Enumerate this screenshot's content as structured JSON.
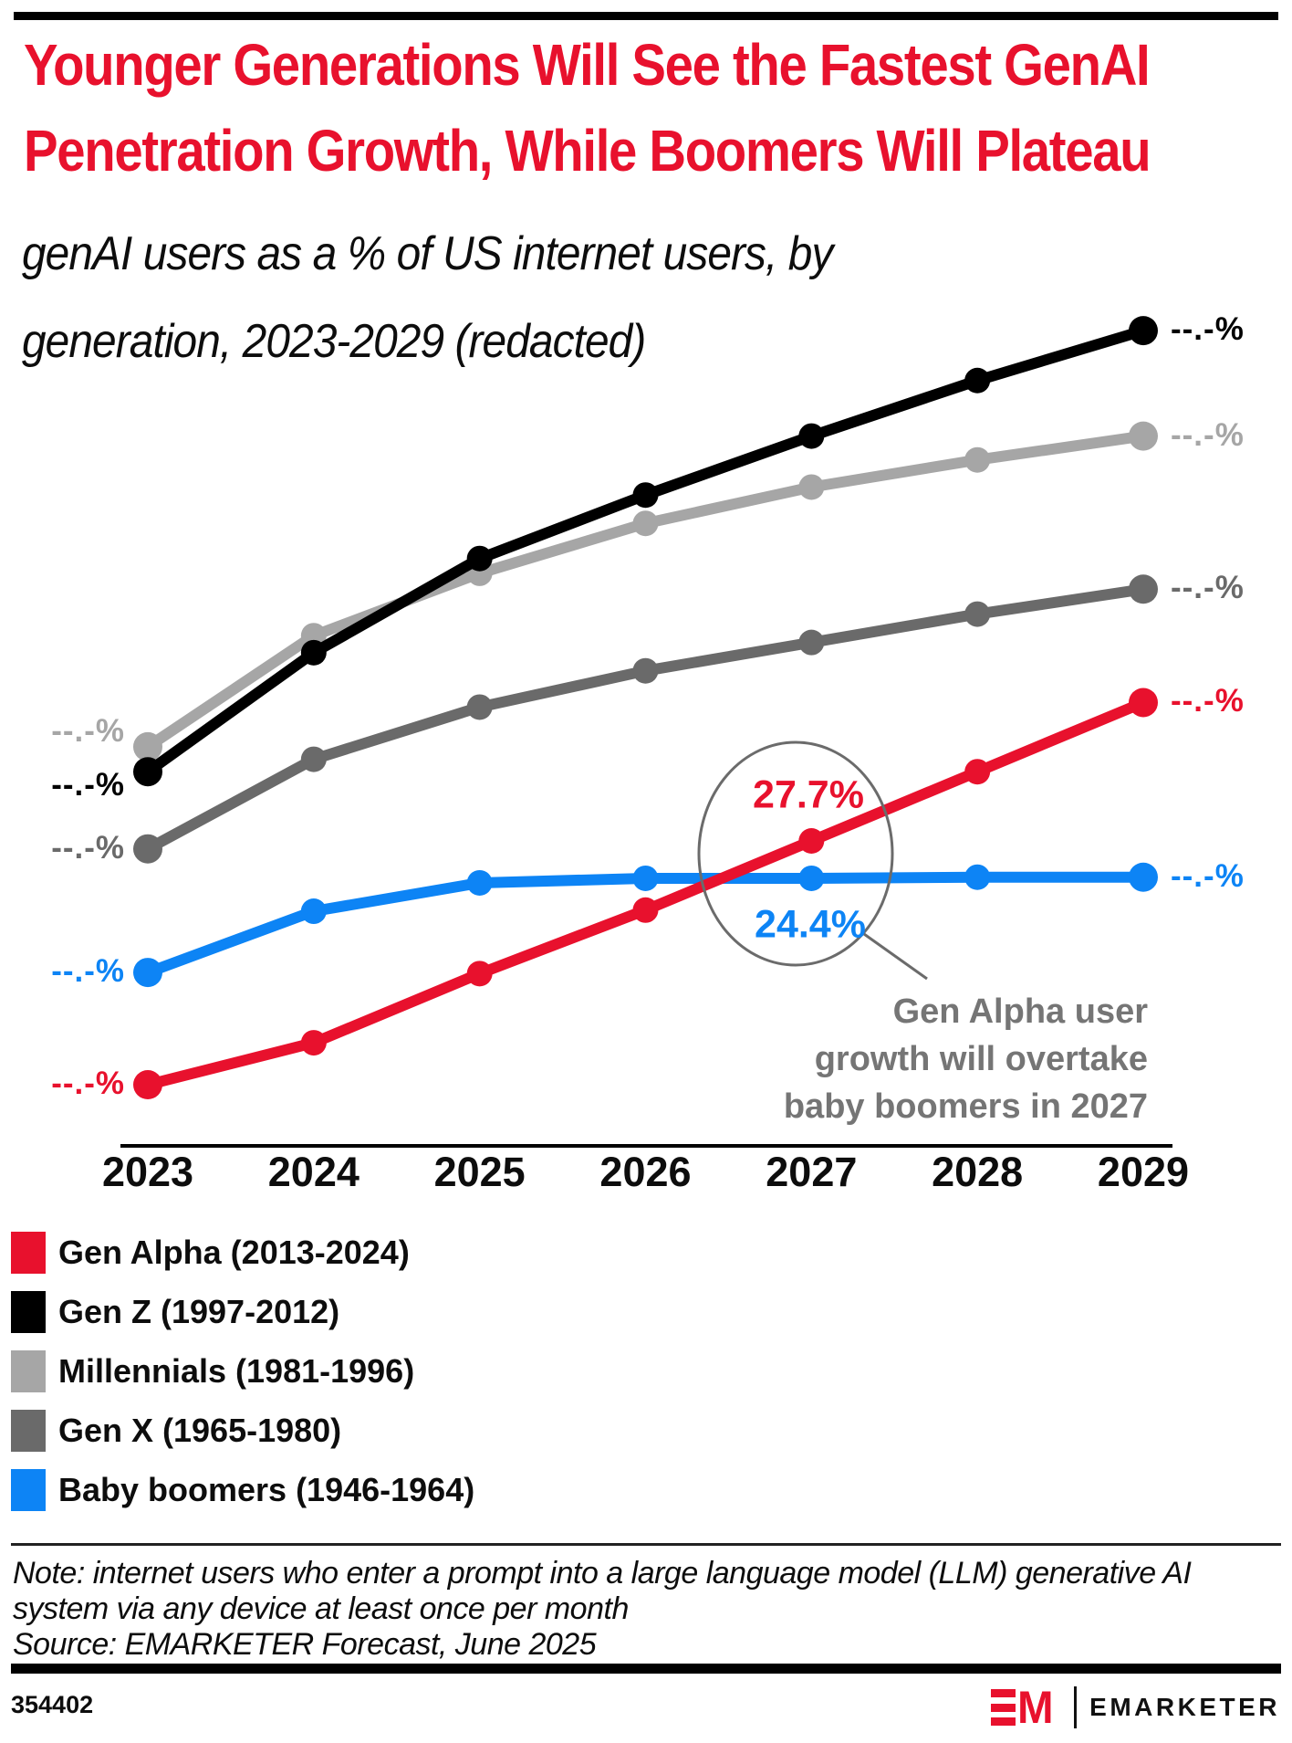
{
  "header": {
    "title_line1": "Younger Generations Will See the Fastest GenAI",
    "title_line2": "Penetration Growth, While Boomers Will Plateau",
    "subtitle_line1": "genAI users as a % of US internet users, by",
    "subtitle_line2": "generation, 2023-2029 (redacted)"
  },
  "chart_data": {
    "type": "line",
    "title": "Younger Generations Will See the Fastest GenAI Penetration Growth, While Boomers Will Plateau",
    "subtitle": "genAI users as a % of US internet users, by generation, 2023-2029 (redacted)",
    "x": [
      2023,
      2024,
      2025,
      2026,
      2027,
      2028,
      2029
    ],
    "ylabel": "genAI users as % of US internet users",
    "ylim": [
      0,
      80
    ],
    "grid": false,
    "legend_position": "bottom-left",
    "values_note": "numeric labels are redacted in the chart ('--.-%'); series values estimated from point positions, anchored to the two printed labels 27.7% and 24.4% in 2027",
    "series": [
      {
        "name": "Gen Alpha (2013-2024)",
        "color": "#e8112d",
        "values": [
          6.2,
          9.9,
          16.0,
          21.6,
          27.7,
          33.8,
          39.9
        ],
        "left_label": "--.-%",
        "right_label": "--.-%"
      },
      {
        "name": "Gen Z (1997-2012)",
        "color": "#000000",
        "values": [
          33.8,
          44.3,
          52.6,
          58.2,
          63.4,
          68.3,
          72.7
        ],
        "left_label": "--.-%",
        "right_label": "--.-%"
      },
      {
        "name": "Millennials (1981-1996)",
        "color": "#a6a6a6",
        "values": [
          36.0,
          45.8,
          51.3,
          55.7,
          58.9,
          61.3,
          63.4
        ],
        "left_label": "--.-%",
        "right_label": "--.-%"
      },
      {
        "name": "Gen X (1965-1980)",
        "color": "#6a6a6a",
        "values": [
          27.0,
          34.9,
          39.5,
          42.7,
          45.2,
          47.7,
          49.9
        ],
        "left_label": "--.-%",
        "right_label": "--.-%"
      },
      {
        "name": "Baby boomers (1946-1964)",
        "color": "#0d84f5",
        "values": [
          16.1,
          21.5,
          24.0,
          24.4,
          24.4,
          24.5,
          24.5
        ],
        "left_label": "--.-%",
        "right_label": "--.-%"
      }
    ],
    "callouts": {
      "gen_alpha_2027": "27.7%",
      "baby_boomers_2027": "24.4%"
    },
    "annotation": {
      "line1": "Gen Alpha user",
      "line2": "growth will overtake",
      "line3": "baby boomers in 2027"
    }
  },
  "legend": {
    "items": [
      {
        "label": "Gen Alpha (2013-2024)",
        "color": "#e8112d"
      },
      {
        "label": "Gen Z (1997-2012)",
        "color": "#000000"
      },
      {
        "label": "Millennials (1981-1996)",
        "color": "#a6a6a6"
      },
      {
        "label": "Gen X (1965-1980)",
        "color": "#6a6a6a"
      },
      {
        "label": "Baby boomers (1946-1964)",
        "color": "#0d84f5"
      }
    ]
  },
  "notes": {
    "note_line1": "Note: internet users who enter a prompt into a large language model (LLM) generative AI",
    "note_line2": "system via any device at least once per month",
    "source": "Source: EMARKETER Forecast, June 2025"
  },
  "footer": {
    "chart_id": "354402",
    "brand": "EMARKETER"
  }
}
